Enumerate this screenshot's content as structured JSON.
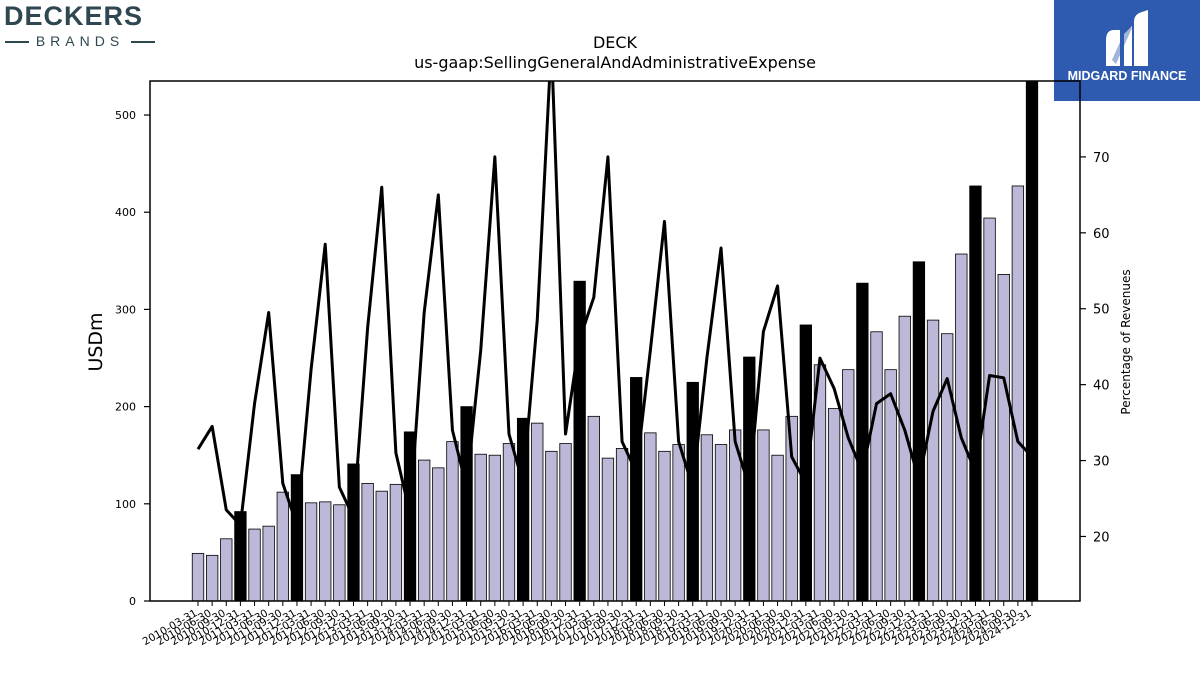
{
  "branding": {
    "left_logo": {
      "word": "DECKERS",
      "sub": "BRANDS"
    },
    "right_logo": {
      "name": "MIDGARD FINANCE",
      "icon": "midgard-m-icon",
      "bg": "#2e5ab0"
    }
  },
  "chart_data": {
    "type": "bar",
    "title": "DECK",
    "subtitle": "us-gaap:SellingGeneralAndAdministrativeExpense",
    "ylabel": "USDm",
    "y2label": "Percentage of Revenues",
    "ylim": [
      0,
      535
    ],
    "y2lim": [
      11.5,
      80
    ],
    "yticks": [
      0,
      100,
      200,
      300,
      400,
      500
    ],
    "y2ticks": [
      20,
      30,
      40,
      50,
      60,
      70
    ],
    "colors": {
      "quarter_bar": "#bcb8d8",
      "annual_bar": "#000000",
      "bar_edge": "#000000",
      "line": "#000000"
    },
    "categories": [
      "2010-03-31",
      "2010-06-30",
      "2010-09-30",
      "2010-12-31",
      "2011-03-31",
      "2011-06-30",
      "2011-09-30",
      "2011-12-31",
      "2012-03-31",
      "2012-06-30",
      "2012-09-30",
      "2012-12-31",
      "2013-03-31",
      "2013-06-30",
      "2013-09-30",
      "2013-12-31",
      "2014-03-31",
      "2014-06-30",
      "2014-09-30",
      "2014-12-31",
      "2015-03-31",
      "2015-06-30",
      "2015-09-30",
      "2015-12-31",
      "2016-03-31",
      "2016-06-30",
      "2016-09-30",
      "2016-12-31",
      "2017-03-31",
      "2017-06-30",
      "2017-09-30",
      "2017-12-31",
      "2018-03-31",
      "2018-06-30",
      "2018-09-30",
      "2018-12-31",
      "2019-03-31",
      "2019-06-30",
      "2019-09-30",
      "2019-12-31",
      "2020-03-31",
      "2020-06-30",
      "2020-09-30",
      "2020-12-31",
      "2021-03-31",
      "2021-06-30",
      "2021-09-30",
      "2021-12-31",
      "2022-03-31",
      "2022-06-30",
      "2022-09-30",
      "2022-12-31",
      "2023-03-31",
      "2023-06-30",
      "2023-09-30",
      "2023-12-31",
      "2024-03-31",
      "2024-06-30",
      "2024-09-30",
      "2024-12-31"
    ],
    "xtick_labels": [
      "2010-03-31",
      "2010-06-30",
      "2010-09-30",
      "2010-12-31",
      "2011-03-31",
      "2011-06-30",
      "2011-09-30",
      "2011-12-31",
      "2012-03-31",
      "2012-06-30",
      "2012-09-30",
      "2012-12-31",
      "2013-03-31",
      "2013-06-30",
      "2013-09-30",
      "2013-12-31",
      "2014-03-31",
      "2014-06-30",
      "2014-09-30",
      "2014-12-31",
      "2015-03-31",
      "2015-06-30",
      "2015-09-30",
      "2015-12-31",
      "2016-03-31",
      "2016-06-30",
      "2016-09-30",
      "2016-12-31",
      "2017-03-31",
      "2017-06-30",
      "2017-09-30",
      "2017-12-31",
      "2018-03-31",
      "2018-06-30",
      "2018-09-30",
      "2018-12-31",
      "2019-03-31",
      "2019-06-30",
      "2019-09-30",
      "2019-12-31",
      "2020-03-31",
      "2020-06-30",
      "2020-09-30",
      "2020-12-31",
      "2021-03-31",
      "2021-06-30",
      "2021-09-30",
      "2021-12-31",
      "2022-03-31",
      "2022-06-30",
      "2022-09-30",
      "2022-12-31",
      "2023-03-31",
      "2023-06-30",
      "2023-09-30",
      "2023-12-31",
      "2024-03-31",
      "2024-06-30",
      "2024-09-30",
      "2024-12-31"
    ],
    "annual_flags": [
      0,
      0,
      0,
      1,
      0,
      0,
      0,
      1,
      0,
      0,
      0,
      1,
      0,
      0,
      0,
      1,
      0,
      0,
      0,
      1,
      0,
      0,
      0,
      1,
      0,
      0,
      0,
      1,
      0,
      0,
      0,
      1,
      0,
      0,
      0,
      1,
      0,
      0,
      0,
      1,
      0,
      0,
      0,
      1,
      0,
      0,
      0,
      1,
      0,
      0,
      0,
      1,
      0,
      0,
      0,
      1,
      0,
      0,
      0,
      1
    ],
    "series": [
      {
        "type": "bar",
        "axis": "left",
        "values": [
          49,
          47,
          64,
          92,
          74,
          77,
          112,
          130,
          101,
          102,
          99,
          141,
          121,
          113,
          120,
          174,
          145,
          137,
          164,
          200,
          151,
          150,
          162,
          188,
          183,
          154,
          162,
          329,
          190,
          147,
          157,
          230,
          173,
          154,
          161,
          225,
          171,
          161,
          176,
          251,
          176,
          150,
          190,
          284,
          243,
          198,
          238,
          327,
          277,
          238,
          293,
          349,
          289,
          275,
          357,
          427,
          394,
          336,
          427,
          550
        ]
      },
      {
        "type": "line",
        "axis": "right",
        "values": [
          31.5,
          34.5,
          23.5,
          21.5,
          37.5,
          49.5,
          27,
          21.5,
          42,
          58.5,
          26.5,
          22.5,
          47.5,
          66,
          31,
          23,
          49.5,
          65,
          34,
          26.5,
          44.5,
          70,
          33.5,
          27,
          48.5,
          85,
          33.5,
          46,
          51.5,
          70,
          32.5,
          28.5,
          44.5,
          61.5,
          32.5,
          26.5,
          43.5,
          58,
          32.5,
          26.5,
          47,
          53,
          30.5,
          27,
          43.5,
          39.5,
          33,
          28.5,
          37.5,
          38.8,
          34,
          27.5,
          36.5,
          40.8,
          33,
          28.5,
          41.2,
          40.9,
          32.5,
          30.5
        ]
      }
    ]
  }
}
